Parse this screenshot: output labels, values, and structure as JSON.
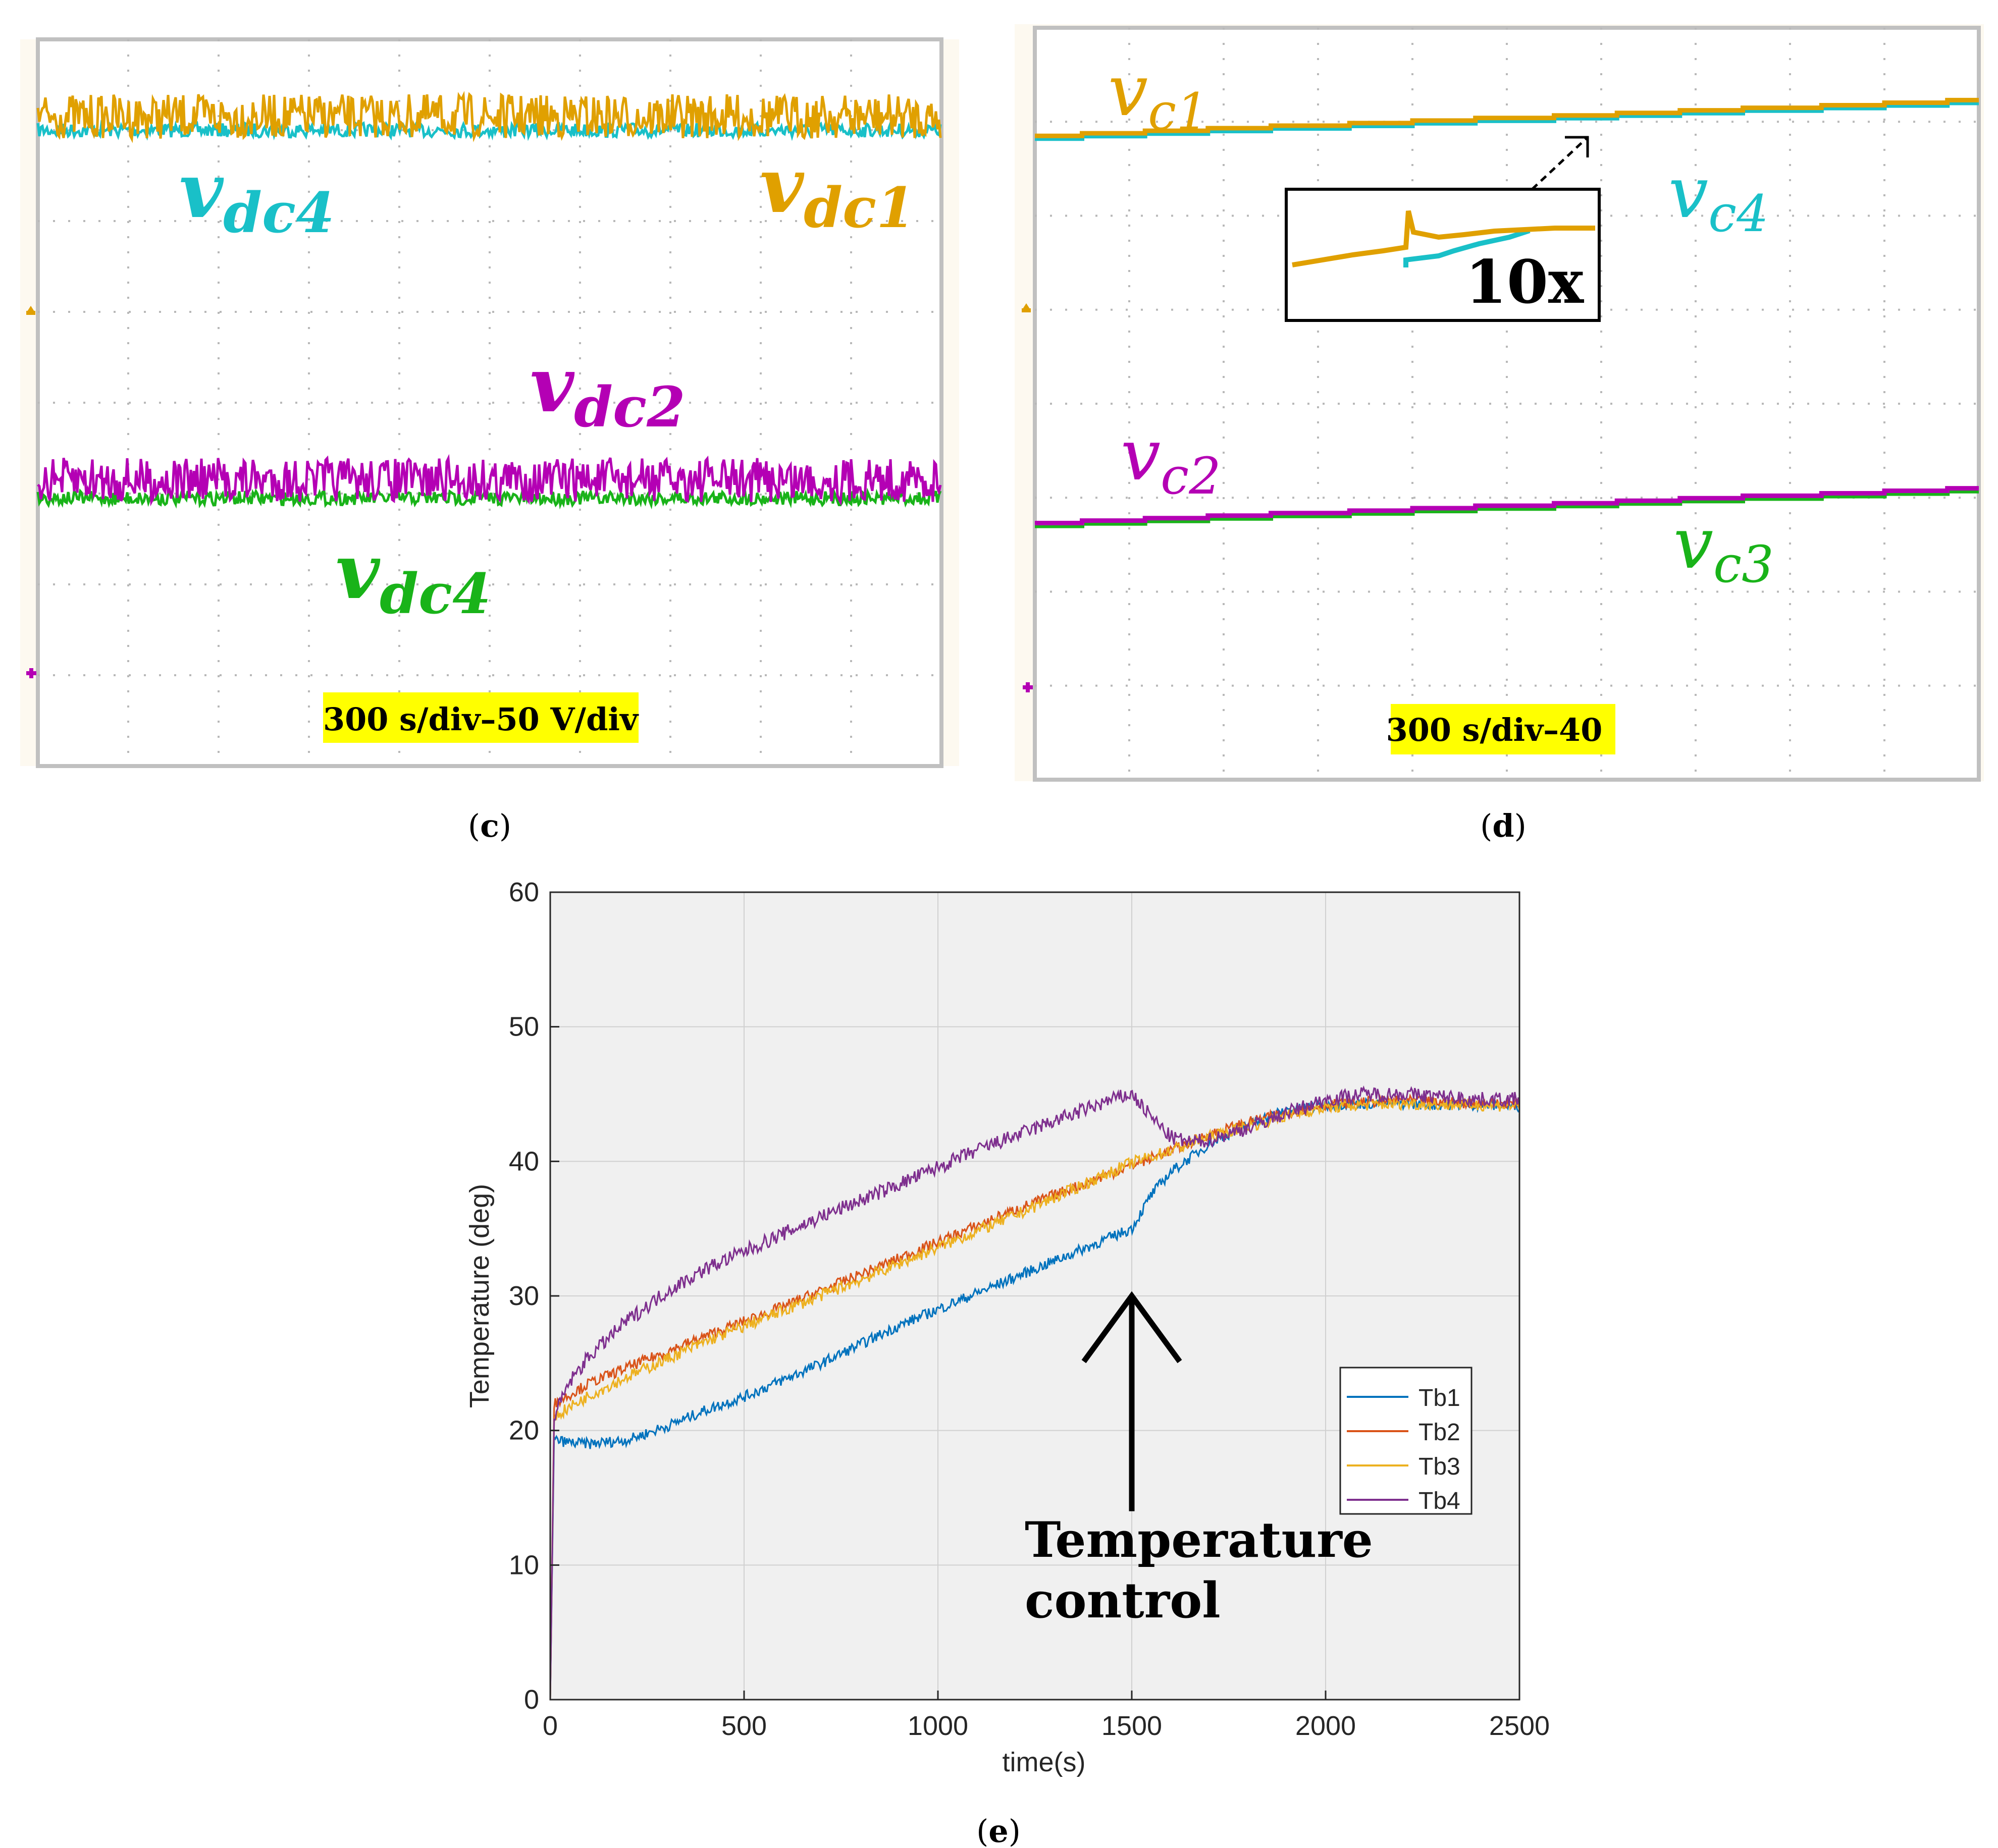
{
  "panel_c": {
    "caption": "(c)",
    "caption_letter": "c",
    "scale_label": "300 s/div–50 V/div",
    "labels": [
      {
        "base": "v",
        "sub": "dc4",
        "color": "#19c0c8"
      },
      {
        "base": "v",
        "sub": "dc1",
        "color": "#e0a000"
      },
      {
        "base": "v",
        "sub": "dc2",
        "color": "#b400b4"
      },
      {
        "base": "v",
        "sub": "dc4",
        "color": "#19b319"
      }
    ],
    "traces": [
      {
        "name": "vdc1",
        "color": "#e0a000",
        "level_div": 0.85
      },
      {
        "name": "vdc4-upper",
        "color": "#19c0c8",
        "level_div": 1.0
      },
      {
        "name": "vdc2",
        "color": "#b400b4",
        "level_div": 4.85
      },
      {
        "name": "vdc4-lower",
        "color": "#19b319",
        "level_div": 5.05
      }
    ],
    "grid": {
      "x_divisions": 10,
      "y_divisions": 8
    },
    "colors": {
      "frame": "#c0c0c0",
      "grid": "#b8b8b8",
      "highlight": "#ffff00"
    }
  },
  "panel_d": {
    "caption": "(d)",
    "caption_letter": "d",
    "scale_label": "300 s/div–40",
    "inset_label": "10x",
    "labels": [
      {
        "base": "v",
        "sub": "c1",
        "color": "#e0a000"
      },
      {
        "base": "v",
        "sub": "c4",
        "color": "#19c0c8"
      },
      {
        "base": "v",
        "sub": "c2",
        "color": "#b400b4"
      },
      {
        "base": "v",
        "sub": "c3",
        "color": "#19b319"
      }
    ],
    "traces": [
      {
        "name": "vc1",
        "color": "#e0a000",
        "start_div": 1.15,
        "end_div": 0.77
      },
      {
        "name": "vc4",
        "color": "#19c0c8",
        "start_div": 1.18,
        "end_div": 0.8
      },
      {
        "name": "vc2",
        "color": "#b400b4",
        "start_div": 5.27,
        "end_div": 4.9
      },
      {
        "name": "vc3",
        "color": "#19b319",
        "start_div": 5.3,
        "end_div": 4.93
      }
    ],
    "grid": {
      "x_divisions": 10,
      "y_divisions": 8
    }
  },
  "panel_e": {
    "caption": "(e)",
    "caption_letter": "e",
    "annotation_line1": "Temperature",
    "annotation_line2": "control",
    "chart_data": {
      "type": "line",
      "title": "",
      "xlabel": "time(s)",
      "ylabel": "Temperature (deg)",
      "xlim": [
        0,
        2500
      ],
      "ylim": [
        0,
        60
      ],
      "x_ticks": [
        0,
        500,
        1000,
        1500,
        2000,
        2500
      ],
      "y_ticks": [
        0,
        10,
        20,
        30,
        40,
        50,
        60
      ],
      "grid": true,
      "legend_position": "right",
      "annotation": {
        "text": "Temperature control",
        "x": 1500,
        "y_tip": 30,
        "y_tail": 14
      },
      "series": [
        {
          "name": "Tb1",
          "color": "#0072bd",
          "noise": 0.4,
          "x": [
            0,
            10,
            50,
            100,
            200,
            300,
            400,
            500,
            700,
            900,
            1100,
            1300,
            1500,
            1550,
            1600,
            1700,
            1800,
            1900,
            2000,
            2100,
            2200,
            2300,
            2400,
            2500
          ],
          "y": [
            0,
            19.3,
            19.1,
            19.0,
            19.3,
            20.3,
            21.5,
            22.5,
            25.0,
            27.8,
            30.2,
            32.6,
            35.0,
            37.5,
            39.2,
            41.3,
            42.8,
            43.8,
            44.2,
            44.3,
            44.3,
            44.2,
            44.2,
            44.1
          ]
        },
        {
          "name": "Tb2",
          "color": "#d95319",
          "noise": 0.4,
          "x": [
            0,
            10,
            100,
            200,
            400,
            600,
            800,
            1000,
            1200,
            1400,
            1500,
            1600,
            1700,
            1800,
            1900,
            2000,
            2100,
            2200,
            2300,
            2400,
            2500
          ],
          "y": [
            0,
            22.0,
            23.5,
            24.7,
            27.0,
            29.2,
            31.6,
            34.0,
            36.4,
            38.6,
            39.7,
            40.8,
            42.0,
            42.9,
            43.6,
            44.2,
            44.4,
            44.5,
            44.4,
            44.3,
            44.3
          ]
        },
        {
          "name": "Tb3",
          "color": "#edb120",
          "noise": 0.45,
          "x": [
            0,
            10,
            100,
            200,
            400,
            600,
            800,
            1000,
            1200,
            1400,
            1500,
            1600,
            1700,
            1800,
            1900,
            2000,
            2100,
            2200,
            2300,
            2400,
            2500
          ],
          "y": [
            0,
            21.0,
            22.6,
            24.0,
            26.6,
            28.9,
            31.2,
            33.6,
            36.0,
            38.6,
            39.9,
            40.8,
            41.8,
            42.6,
            43.4,
            44.0,
            44.2,
            44.3,
            44.2,
            44.2,
            44.1
          ]
        },
        {
          "name": "Tb4",
          "color": "#7e2f8e",
          "noise": 0.55,
          "x": [
            0,
            10,
            50,
            100,
            200,
            300,
            400,
            500,
            700,
            900,
            1100,
            1300,
            1450,
            1500,
            1550,
            1600,
            1650,
            1700,
            1800,
            1900,
            2000,
            2100,
            2200,
            2300,
            2400,
            2500
          ],
          "y": [
            0,
            21.0,
            23.6,
            25.5,
            28.2,
            30.3,
            32.0,
            33.3,
            35.9,
            38.3,
            40.8,
            43.0,
            44.6,
            45.0,
            43.3,
            41.8,
            41.4,
            41.6,
            42.5,
            43.6,
            44.6,
            45.0,
            45.0,
            44.8,
            44.6,
            44.6
          ]
        }
      ]
    }
  }
}
